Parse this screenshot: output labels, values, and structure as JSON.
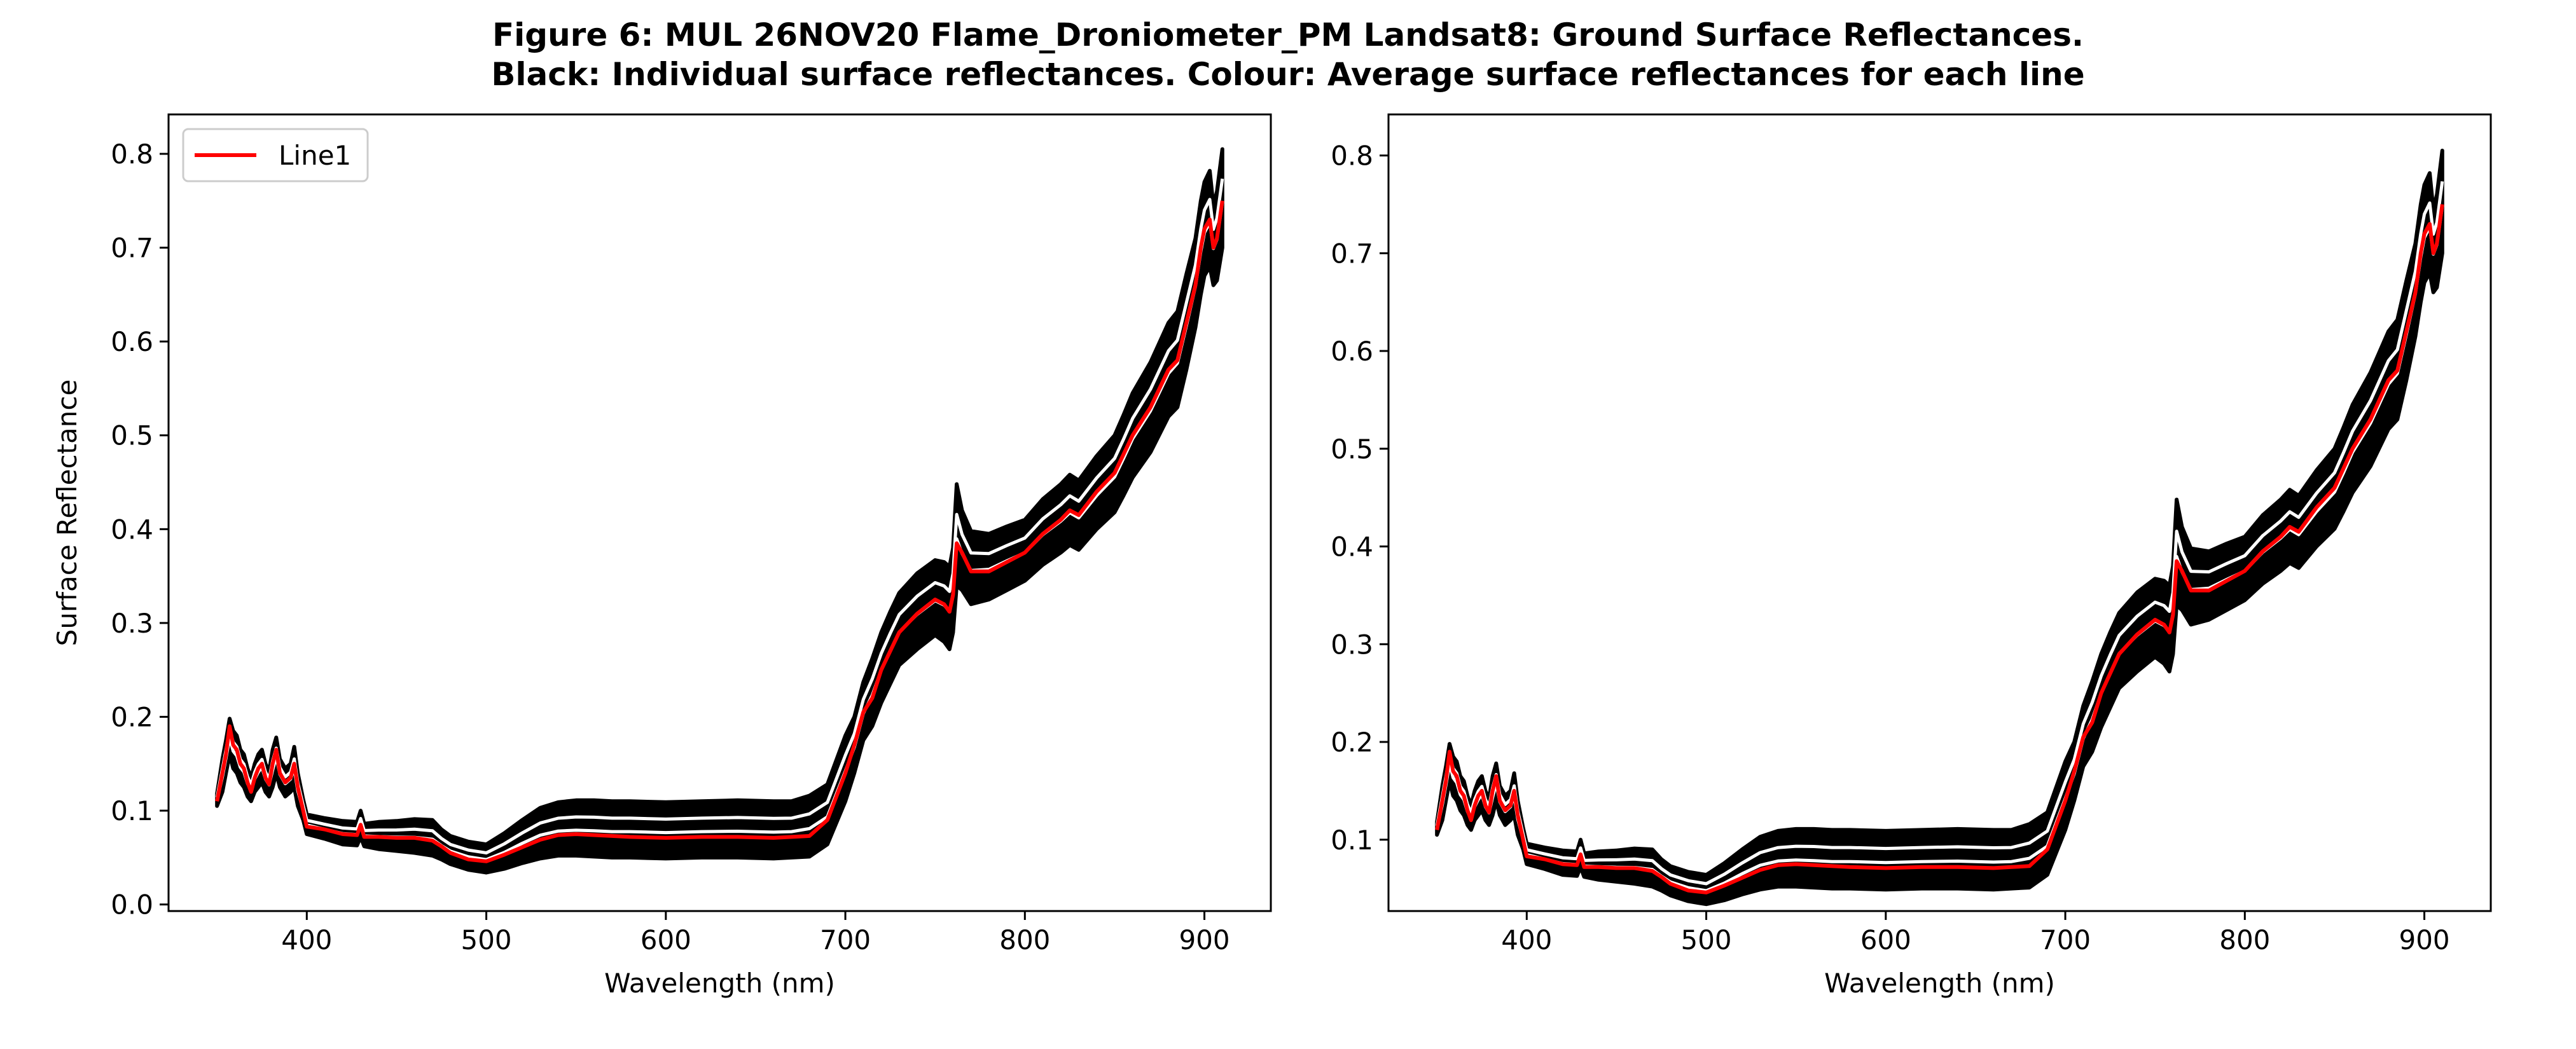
{
  "figure": {
    "title_line1": "Figure 6: MUL 26NOV20 Flame_Droniometer_PM Landsat8: Ground Surface Reflectances.",
    "title_line2": "Black: Individual surface reflectances. Colour: Average surface reflectances for each line"
  },
  "chart_data": [
    {
      "type": "line",
      "xlabel": "Wavelength (nm)",
      "ylabel": "Surface Reflectance",
      "xlim": [
        323,
        937
      ],
      "ylim": [
        -0.007,
        0.842
      ],
      "xticks": [
        400,
        500,
        600,
        700,
        800,
        900
      ],
      "yticks": [
        0.0,
        0.1,
        0.2,
        0.3,
        0.4,
        0.5,
        0.6,
        0.7,
        0.8
      ],
      "ytick_labels": [
        "0.0",
        "0.1",
        "0.2",
        "0.3",
        "0.4",
        "0.5",
        "0.6",
        "0.7",
        "0.8"
      ],
      "legend": {
        "position": "top-left",
        "entries": [
          {
            "label": "Line1",
            "color": "#ff0000"
          }
        ]
      },
      "grid": false,
      "band_color": "#000000",
      "mean_color": "#ff0000",
      "series": [
        {
          "name": "Line1",
          "x": [
            350,
            353,
            355,
            357,
            359,
            361,
            363,
            365,
            367,
            369,
            371,
            373,
            375,
            377,
            379,
            381,
            383,
            385,
            388,
            391,
            393,
            395,
            398,
            400,
            410,
            420,
            428,
            430,
            432,
            440,
            450,
            460,
            470,
            475,
            480,
            490,
            500,
            510,
            520,
            530,
            540,
            550,
            560,
            570,
            580,
            600,
            620,
            640,
            660,
            670,
            680,
            690,
            700,
            705,
            710,
            715,
            720,
            725,
            730,
            740,
            750,
            755,
            758,
            760,
            762,
            765,
            770,
            780,
            790,
            800,
            810,
            820,
            825,
            830,
            840,
            850,
            855,
            860,
            870,
            880,
            885,
            890,
            895,
            898,
            900,
            903,
            905,
            907,
            910
          ],
          "y": [
            0.11,
            0.14,
            0.16,
            0.19,
            0.17,
            0.165,
            0.15,
            0.145,
            0.13,
            0.12,
            0.135,
            0.145,
            0.15,
            0.135,
            0.128,
            0.15,
            0.165,
            0.14,
            0.13,
            0.135,
            0.15,
            0.125,
            0.1,
            0.083,
            0.08,
            0.075,
            0.074,
            0.085,
            0.072,
            0.072,
            0.071,
            0.071,
            0.068,
            0.062,
            0.055,
            0.048,
            0.046,
            0.053,
            0.061,
            0.069,
            0.074,
            0.075,
            0.074,
            0.073,
            0.072,
            0.071,
            0.072,
            0.072,
            0.071,
            0.072,
            0.073,
            0.09,
            0.14,
            0.17,
            0.205,
            0.22,
            0.25,
            0.27,
            0.29,
            0.31,
            0.325,
            0.32,
            0.312,
            0.33,
            0.385,
            0.375,
            0.355,
            0.355,
            0.365,
            0.375,
            0.395,
            0.41,
            0.42,
            0.415,
            0.44,
            0.46,
            0.48,
            0.5,
            0.53,
            0.57,
            0.58,
            0.62,
            0.66,
            0.7,
            0.72,
            0.73,
            0.7,
            0.71,
            0.75
          ],
          "band_low": [
            0.105,
            0.12,
            0.14,
            0.16,
            0.145,
            0.14,
            0.13,
            0.125,
            0.115,
            0.11,
            0.12,
            0.125,
            0.13,
            0.12,
            0.115,
            0.125,
            0.14,
            0.125,
            0.115,
            0.12,
            0.125,
            0.105,
            0.09,
            0.075,
            0.07,
            0.064,
            0.063,
            0.072,
            0.062,
            0.059,
            0.057,
            0.055,
            0.052,
            0.048,
            0.043,
            0.037,
            0.034,
            0.038,
            0.044,
            0.049,
            0.052,
            0.052,
            0.051,
            0.05,
            0.05,
            0.049,
            0.05,
            0.05,
            0.049,
            0.05,
            0.051,
            0.064,
            0.11,
            0.14,
            0.175,
            0.19,
            0.215,
            0.235,
            0.255,
            0.272,
            0.287,
            0.28,
            0.272,
            0.29,
            0.34,
            0.335,
            0.32,
            0.325,
            0.335,
            0.345,
            0.362,
            0.375,
            0.383,
            0.378,
            0.4,
            0.418,
            0.436,
            0.455,
            0.482,
            0.52,
            0.53,
            0.57,
            0.615,
            0.65,
            0.67,
            0.68,
            0.66,
            0.665,
            0.7
          ],
          "band_high": [
            0.118,
            0.155,
            0.175,
            0.198,
            0.185,
            0.18,
            0.165,
            0.16,
            0.145,
            0.135,
            0.15,
            0.16,
            0.165,
            0.15,
            0.142,
            0.165,
            0.178,
            0.155,
            0.145,
            0.15,
            0.168,
            0.14,
            0.112,
            0.096,
            0.092,
            0.089,
            0.088,
            0.1,
            0.086,
            0.088,
            0.089,
            0.091,
            0.09,
            0.08,
            0.073,
            0.067,
            0.064,
            0.076,
            0.09,
            0.103,
            0.109,
            0.111,
            0.111,
            0.11,
            0.11,
            0.109,
            0.11,
            0.111,
            0.11,
            0.11,
            0.116,
            0.128,
            0.18,
            0.2,
            0.237,
            0.262,
            0.29,
            0.312,
            0.332,
            0.353,
            0.367,
            0.365,
            0.36,
            0.38,
            0.448,
            0.42,
            0.398,
            0.395,
            0.403,
            0.41,
            0.432,
            0.448,
            0.458,
            0.452,
            0.478,
            0.5,
            0.522,
            0.545,
            0.578,
            0.62,
            0.632,
            0.672,
            0.71,
            0.75,
            0.77,
            0.782,
            0.745,
            0.76,
            0.805
          ]
        }
      ]
    },
    {
      "type": "line",
      "xlabel": "Wavelength (nm)",
      "ylabel": "",
      "xlim": [
        323,
        937
      ],
      "ylim": [
        0.027,
        0.842
      ],
      "xticks": [
        400,
        500,
        600,
        700,
        800,
        900
      ],
      "yticks": [
        0.1,
        0.2,
        0.3,
        0.4,
        0.5,
        0.6,
        0.7,
        0.8
      ],
      "ytick_labels": [
        "0.1",
        "0.2",
        "0.3",
        "0.4",
        "0.5",
        "0.6",
        "0.7",
        "0.8"
      ],
      "grid": false,
      "band_color": "#000000",
      "mean_color": "#ff0000",
      "series": [
        {
          "x": [
            350,
            353,
            355,
            357,
            359,
            361,
            363,
            365,
            367,
            369,
            371,
            373,
            375,
            377,
            379,
            381,
            383,
            385,
            388,
            391,
            393,
            395,
            398,
            400,
            410,
            420,
            428,
            430,
            432,
            440,
            450,
            460,
            470,
            475,
            480,
            490,
            500,
            510,
            520,
            530,
            540,
            550,
            560,
            570,
            580,
            600,
            620,
            640,
            660,
            670,
            680,
            690,
            700,
            705,
            710,
            715,
            720,
            725,
            730,
            740,
            750,
            755,
            758,
            760,
            762,
            765,
            770,
            780,
            790,
            800,
            810,
            820,
            825,
            830,
            840,
            850,
            855,
            860,
            870,
            880,
            885,
            890,
            895,
            898,
            900,
            903,
            905,
            907,
            910
          ],
          "y": [
            0.11,
            0.14,
            0.16,
            0.19,
            0.17,
            0.165,
            0.15,
            0.145,
            0.13,
            0.12,
            0.135,
            0.145,
            0.15,
            0.135,
            0.128,
            0.15,
            0.165,
            0.14,
            0.13,
            0.135,
            0.15,
            0.125,
            0.1,
            0.083,
            0.08,
            0.075,
            0.074,
            0.085,
            0.072,
            0.072,
            0.071,
            0.071,
            0.068,
            0.062,
            0.055,
            0.048,
            0.046,
            0.053,
            0.061,
            0.069,
            0.074,
            0.075,
            0.074,
            0.073,
            0.072,
            0.071,
            0.072,
            0.072,
            0.071,
            0.072,
            0.073,
            0.09,
            0.14,
            0.17,
            0.205,
            0.22,
            0.25,
            0.27,
            0.29,
            0.31,
            0.325,
            0.32,
            0.312,
            0.33,
            0.385,
            0.375,
            0.355,
            0.355,
            0.365,
            0.375,
            0.395,
            0.41,
            0.42,
            0.415,
            0.44,
            0.46,
            0.48,
            0.5,
            0.53,
            0.57,
            0.58,
            0.62,
            0.66,
            0.7,
            0.72,
            0.73,
            0.7,
            0.71,
            0.75
          ],
          "band_low": [
            0.105,
            0.12,
            0.14,
            0.16,
            0.145,
            0.14,
            0.13,
            0.125,
            0.115,
            0.11,
            0.12,
            0.125,
            0.13,
            0.12,
            0.115,
            0.125,
            0.14,
            0.125,
            0.115,
            0.12,
            0.125,
            0.105,
            0.09,
            0.075,
            0.07,
            0.064,
            0.063,
            0.072,
            0.062,
            0.059,
            0.057,
            0.055,
            0.052,
            0.048,
            0.043,
            0.037,
            0.034,
            0.038,
            0.044,
            0.049,
            0.052,
            0.052,
            0.051,
            0.05,
            0.05,
            0.049,
            0.05,
            0.05,
            0.049,
            0.05,
            0.051,
            0.064,
            0.11,
            0.14,
            0.175,
            0.19,
            0.215,
            0.235,
            0.255,
            0.272,
            0.287,
            0.28,
            0.272,
            0.29,
            0.34,
            0.335,
            0.32,
            0.325,
            0.335,
            0.345,
            0.362,
            0.375,
            0.383,
            0.378,
            0.4,
            0.418,
            0.436,
            0.455,
            0.482,
            0.52,
            0.53,
            0.57,
            0.615,
            0.65,
            0.67,
            0.68,
            0.66,
            0.665,
            0.7
          ],
          "band_high": [
            0.118,
            0.155,
            0.175,
            0.198,
            0.185,
            0.18,
            0.165,
            0.16,
            0.145,
            0.135,
            0.15,
            0.16,
            0.165,
            0.15,
            0.142,
            0.165,
            0.178,
            0.155,
            0.145,
            0.15,
            0.168,
            0.14,
            0.112,
            0.096,
            0.092,
            0.089,
            0.088,
            0.1,
            0.086,
            0.088,
            0.089,
            0.091,
            0.09,
            0.08,
            0.073,
            0.067,
            0.064,
            0.076,
            0.09,
            0.103,
            0.109,
            0.111,
            0.111,
            0.11,
            0.11,
            0.109,
            0.11,
            0.111,
            0.11,
            0.11,
            0.116,
            0.128,
            0.18,
            0.2,
            0.237,
            0.262,
            0.29,
            0.312,
            0.332,
            0.353,
            0.367,
            0.365,
            0.36,
            0.38,
            0.448,
            0.42,
            0.398,
            0.395,
            0.403,
            0.41,
            0.432,
            0.448,
            0.458,
            0.452,
            0.478,
            0.5,
            0.522,
            0.545,
            0.578,
            0.62,
            0.632,
            0.672,
            0.71,
            0.75,
            0.77,
            0.782,
            0.745,
            0.76,
            0.805
          ]
        }
      ]
    }
  ]
}
